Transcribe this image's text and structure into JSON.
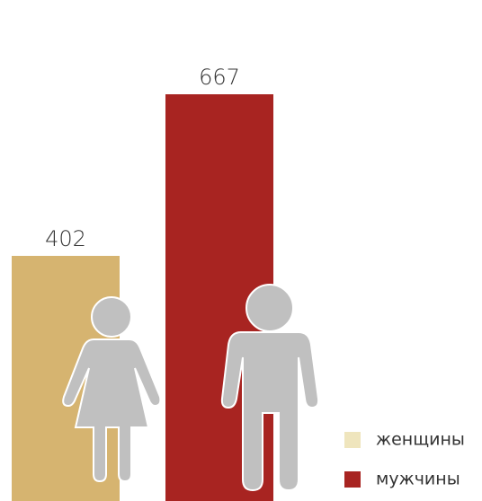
{
  "chart_data": {
    "type": "bar",
    "categories": [
      "женщины",
      "мужчины"
    ],
    "values": [
      402,
      667
    ],
    "colors": [
      "#d6b470",
      "#a82421"
    ],
    "legend_colors": [
      "#efe5bd",
      "#a82421"
    ]
  }
}
